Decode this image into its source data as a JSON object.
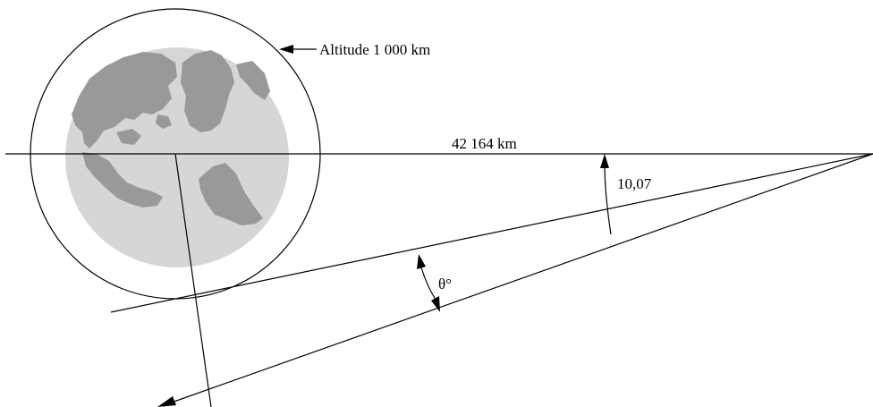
{
  "labels": {
    "altitude": "Altitude 1 000 km",
    "distance": "42 164 km",
    "angle_value": "10,07",
    "theta": "θ°"
  },
  "colors": {
    "ocean": "#d6d6d6",
    "land": "#999999",
    "line": "#000000",
    "background": "#ffffff"
  }
}
